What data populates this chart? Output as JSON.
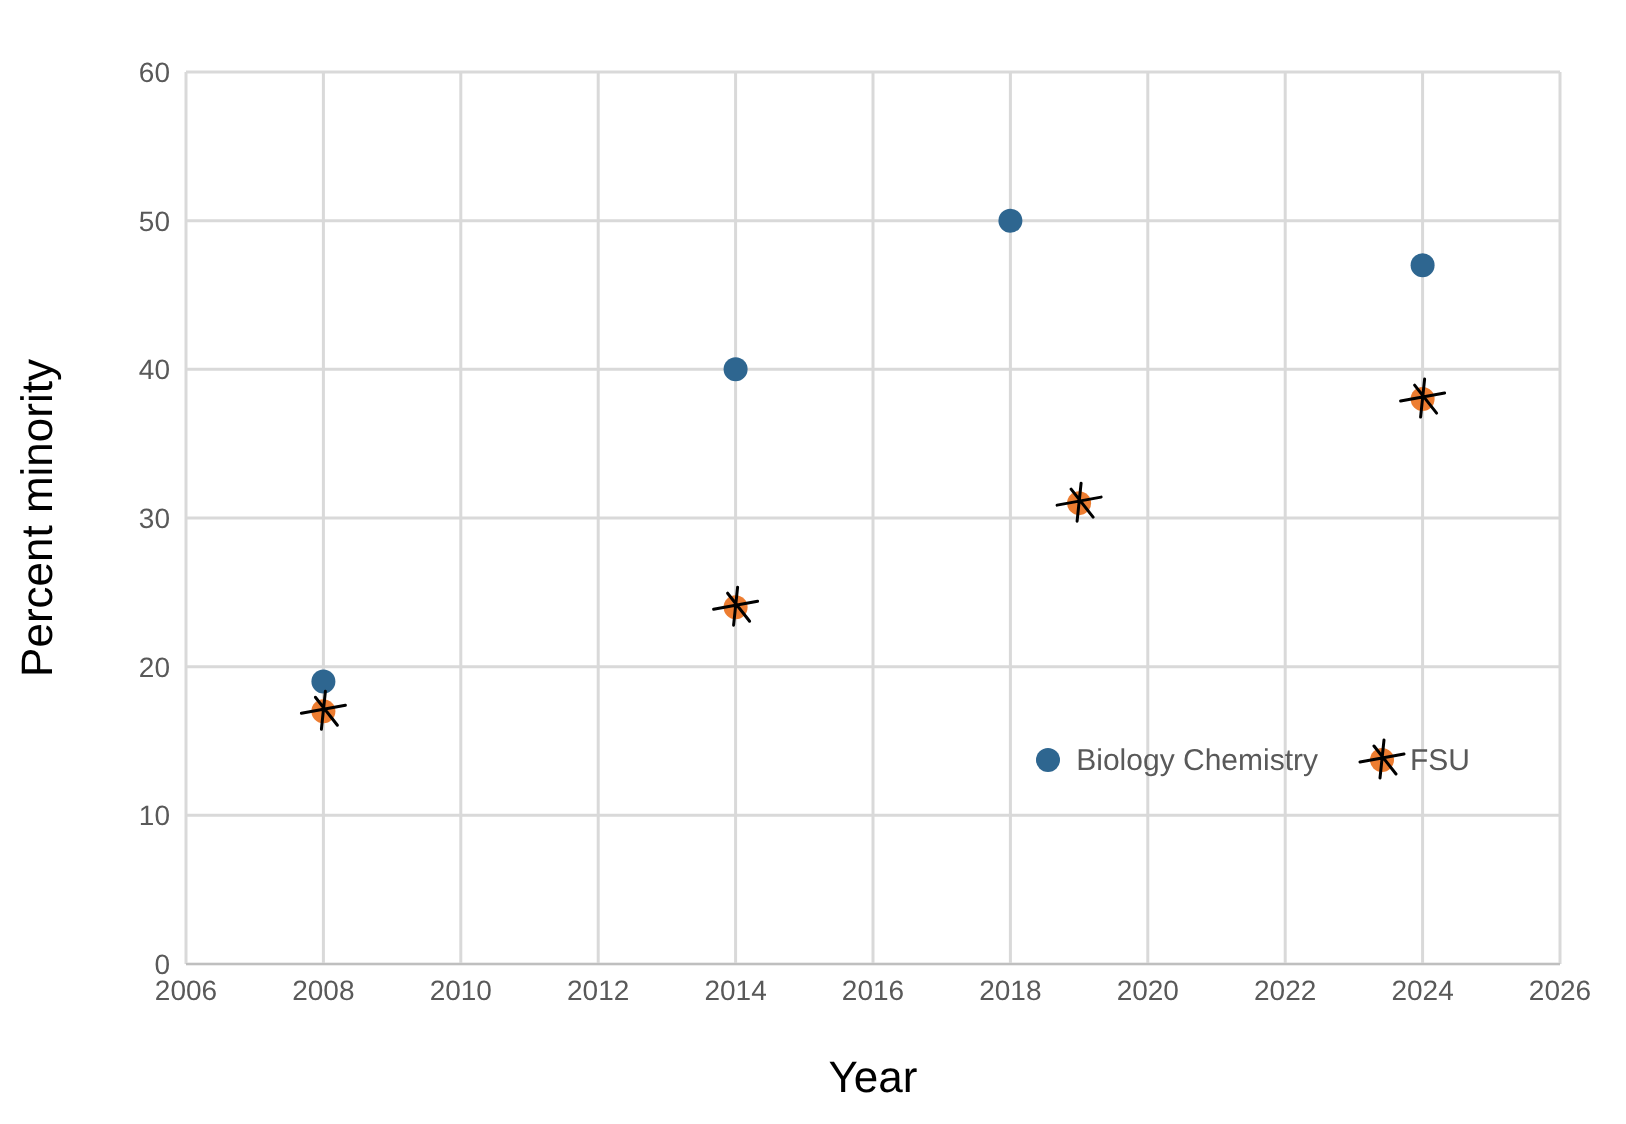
{
  "chart_data": {
    "type": "scatter",
    "xlabel": "Year",
    "ylabel": "Percent minority",
    "xlim": [
      2006,
      2026
    ],
    "xticks": [
      2006,
      2008,
      2010,
      2012,
      2014,
      2016,
      2018,
      2020,
      2022,
      2024,
      2026
    ],
    "ylim": [
      0,
      60
    ],
    "yticks": [
      0,
      10,
      20,
      30,
      40,
      50,
      60
    ],
    "grid": true,
    "legend": "bottom right",
    "marker": "circle",
    "series": [
      {
        "name": "Biology Chemistry",
        "color": "#2e6690",
        "x": [
          2008,
          2014,
          2018,
          2024
        ],
        "values": [
          19,
          40,
          50,
          47
        ]
      },
      {
        "name": "FSU",
        "color": "#ed7d31",
        "x": [
          2008,
          2014,
          2019,
          2024
        ],
        "values": [
          17,
          24,
          31,
          38
        ]
      }
    ]
  }
}
